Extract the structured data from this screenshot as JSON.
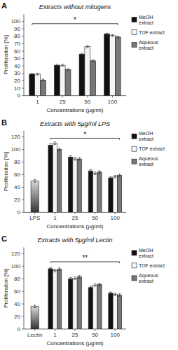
{
  "chart_data": [
    {
      "type": "bar",
      "title": "Extracts without mitogens",
      "x_label": "Concentrations (µg/ml)",
      "y_label": "Proliferation [%]",
      "categories": [
        "1",
        "25",
        "50",
        "100"
      ],
      "series": [
        {
          "name": "MeOH\nextract",
          "color": "#111111",
          "values": [
            29,
            41,
            56,
            83
          ],
          "errors": [
            1.2,
            1.2,
            1.2,
            1.2
          ]
        },
        {
          "name": "TOF extract",
          "color": "#f5f5f5",
          "values": [
            29,
            41,
            66,
            81
          ],
          "errors": [
            1.2,
            1.2,
            1.2,
            1.2
          ]
        },
        {
          "name": "Aqueous\nextract",
          "color": "#777777",
          "values": [
            21,
            35,
            47,
            79
          ],
          "errors": [
            1.2,
            1.2,
            1.2,
            1.2
          ]
        }
      ],
      "ylim": [
        0,
        110
      ],
      "yticks": [
        0,
        10,
        20,
        30,
        40,
        50,
        60,
        70,
        80,
        90,
        100
      ],
      "grid": false,
      "legend": "right",
      "annotations": [
        {
          "type": "panel_label",
          "text": "A"
        },
        {
          "type": "bracket",
          "text": "*",
          "y": 97
        }
      ]
    },
    {
      "type": "bar",
      "title": "Extracts with 5µg/ml LPS",
      "x_label": "Concentrations (µg/ml)",
      "y_label": "Proliferation [%]",
      "categories": [
        "LPS",
        "1",
        "25",
        "50",
        "100"
      ],
      "series": [
        {
          "values": [
            50,
            null,
            null,
            null,
            null
          ],
          "errors": [
            2,
            null,
            null,
            null,
            null
          ]
        },
        {
          "name": "MeOH\nextract",
          "color": "#111111",
          "values": [
            null,
            107,
            88,
            66,
            55
          ],
          "errors": [
            null,
            2,
            2,
            2,
            2
          ]
        },
        {
          "name": "TOF extract",
          "color": "#f5f5f5",
          "values": [
            null,
            110,
            85,
            62,
            57
          ],
          "errors": [
            null,
            2,
            2,
            2,
            2
          ]
        },
        {
          "name": "Aqueous\nextract",
          "color": "#777777",
          "values": [
            null,
            100,
            85,
            64,
            59
          ],
          "errors": [
            null,
            2,
            2,
            2,
            2
          ]
        }
      ],
      "ylim": [
        0,
        130
      ],
      "yticks": [
        0,
        20,
        40,
        60,
        80,
        100,
        120
      ],
      "grid": false,
      "legend": "right",
      "annotations": [
        {
          "type": "panel_label",
          "text": "B"
        },
        {
          "type": "bracket",
          "text": "*",
          "y": 118
        }
      ]
    },
    {
      "type": "bar",
      "title": "Extracts with 5µg/ml Lectin",
      "x_label": "Concentrations (µg/ml)",
      "y_label": "Proliferation [%]",
      "categories": [
        "Lectin",
        "1",
        "25",
        "50",
        "100"
      ],
      "series": [
        {
          "values": [
            36,
            null,
            null,
            null,
            null
          ],
          "errors": [
            2,
            null,
            null,
            null,
            null
          ]
        },
        {
          "name": "MeOH\nextract",
          "color": "#111111",
          "values": [
            null,
            96,
            80,
            66,
            57
          ],
          "errors": [
            null,
            2,
            2,
            2,
            2
          ]
        },
        {
          "name": "TOF extract",
          "color": "#f5f5f5",
          "values": [
            null,
            93,
            81,
            70,
            55
          ],
          "errors": [
            null,
            2,
            2,
            2,
            2
          ]
        },
        {
          "name": "Aqueous\nextract",
          "color": "#777777",
          "values": [
            null,
            95,
            83,
            71,
            54
          ],
          "errors": [
            null,
            2,
            2,
            2,
            2
          ]
        }
      ],
      "ylim": [
        0,
        130
      ],
      "yticks": [
        0,
        20,
        40,
        60,
        80,
        100,
        120
      ],
      "grid": false,
      "legend": "right",
      "annotations": [
        {
          "type": "panel_label",
          "text": "C"
        },
        {
          "type": "bracket",
          "text": "**",
          "y": 107
        }
      ]
    }
  ]
}
